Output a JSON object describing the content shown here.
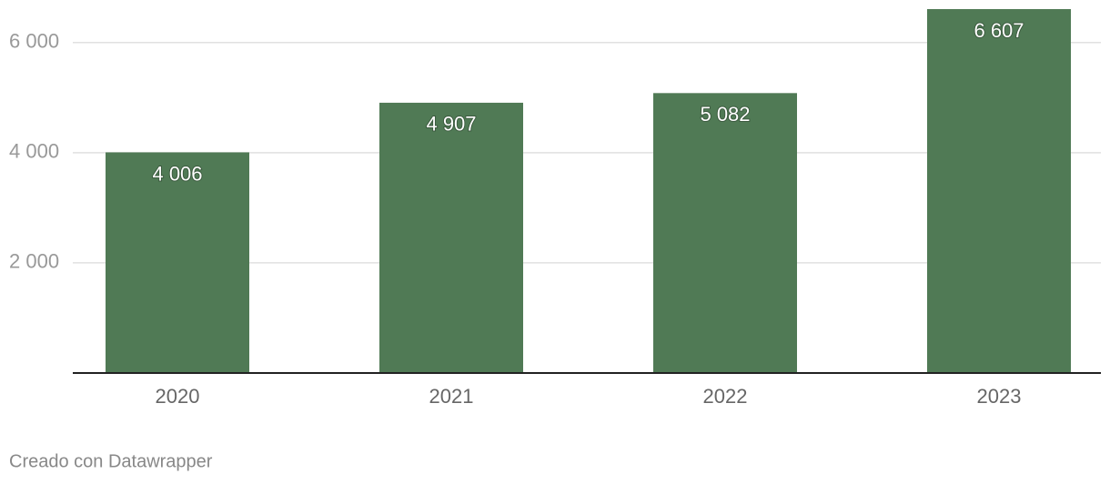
{
  "chart_data": {
    "type": "bar",
    "categories": [
      "2020",
      "2021",
      "2022",
      "2023"
    ],
    "values": [
      4006,
      4907,
      5082,
      6607
    ],
    "value_labels": [
      "4 006",
      "4 907",
      "5 082",
      "6 607"
    ],
    "color": "#507a55",
    "ylim": [
      0,
      6607
    ],
    "yticks": [
      {
        "value": 2000,
        "label": "2 000"
      },
      {
        "value": 4000,
        "label": "4 000"
      },
      {
        "value": 6000,
        "label": "6 000"
      }
    ],
    "grid": true,
    "credit": "Creado con Datawrapper"
  }
}
